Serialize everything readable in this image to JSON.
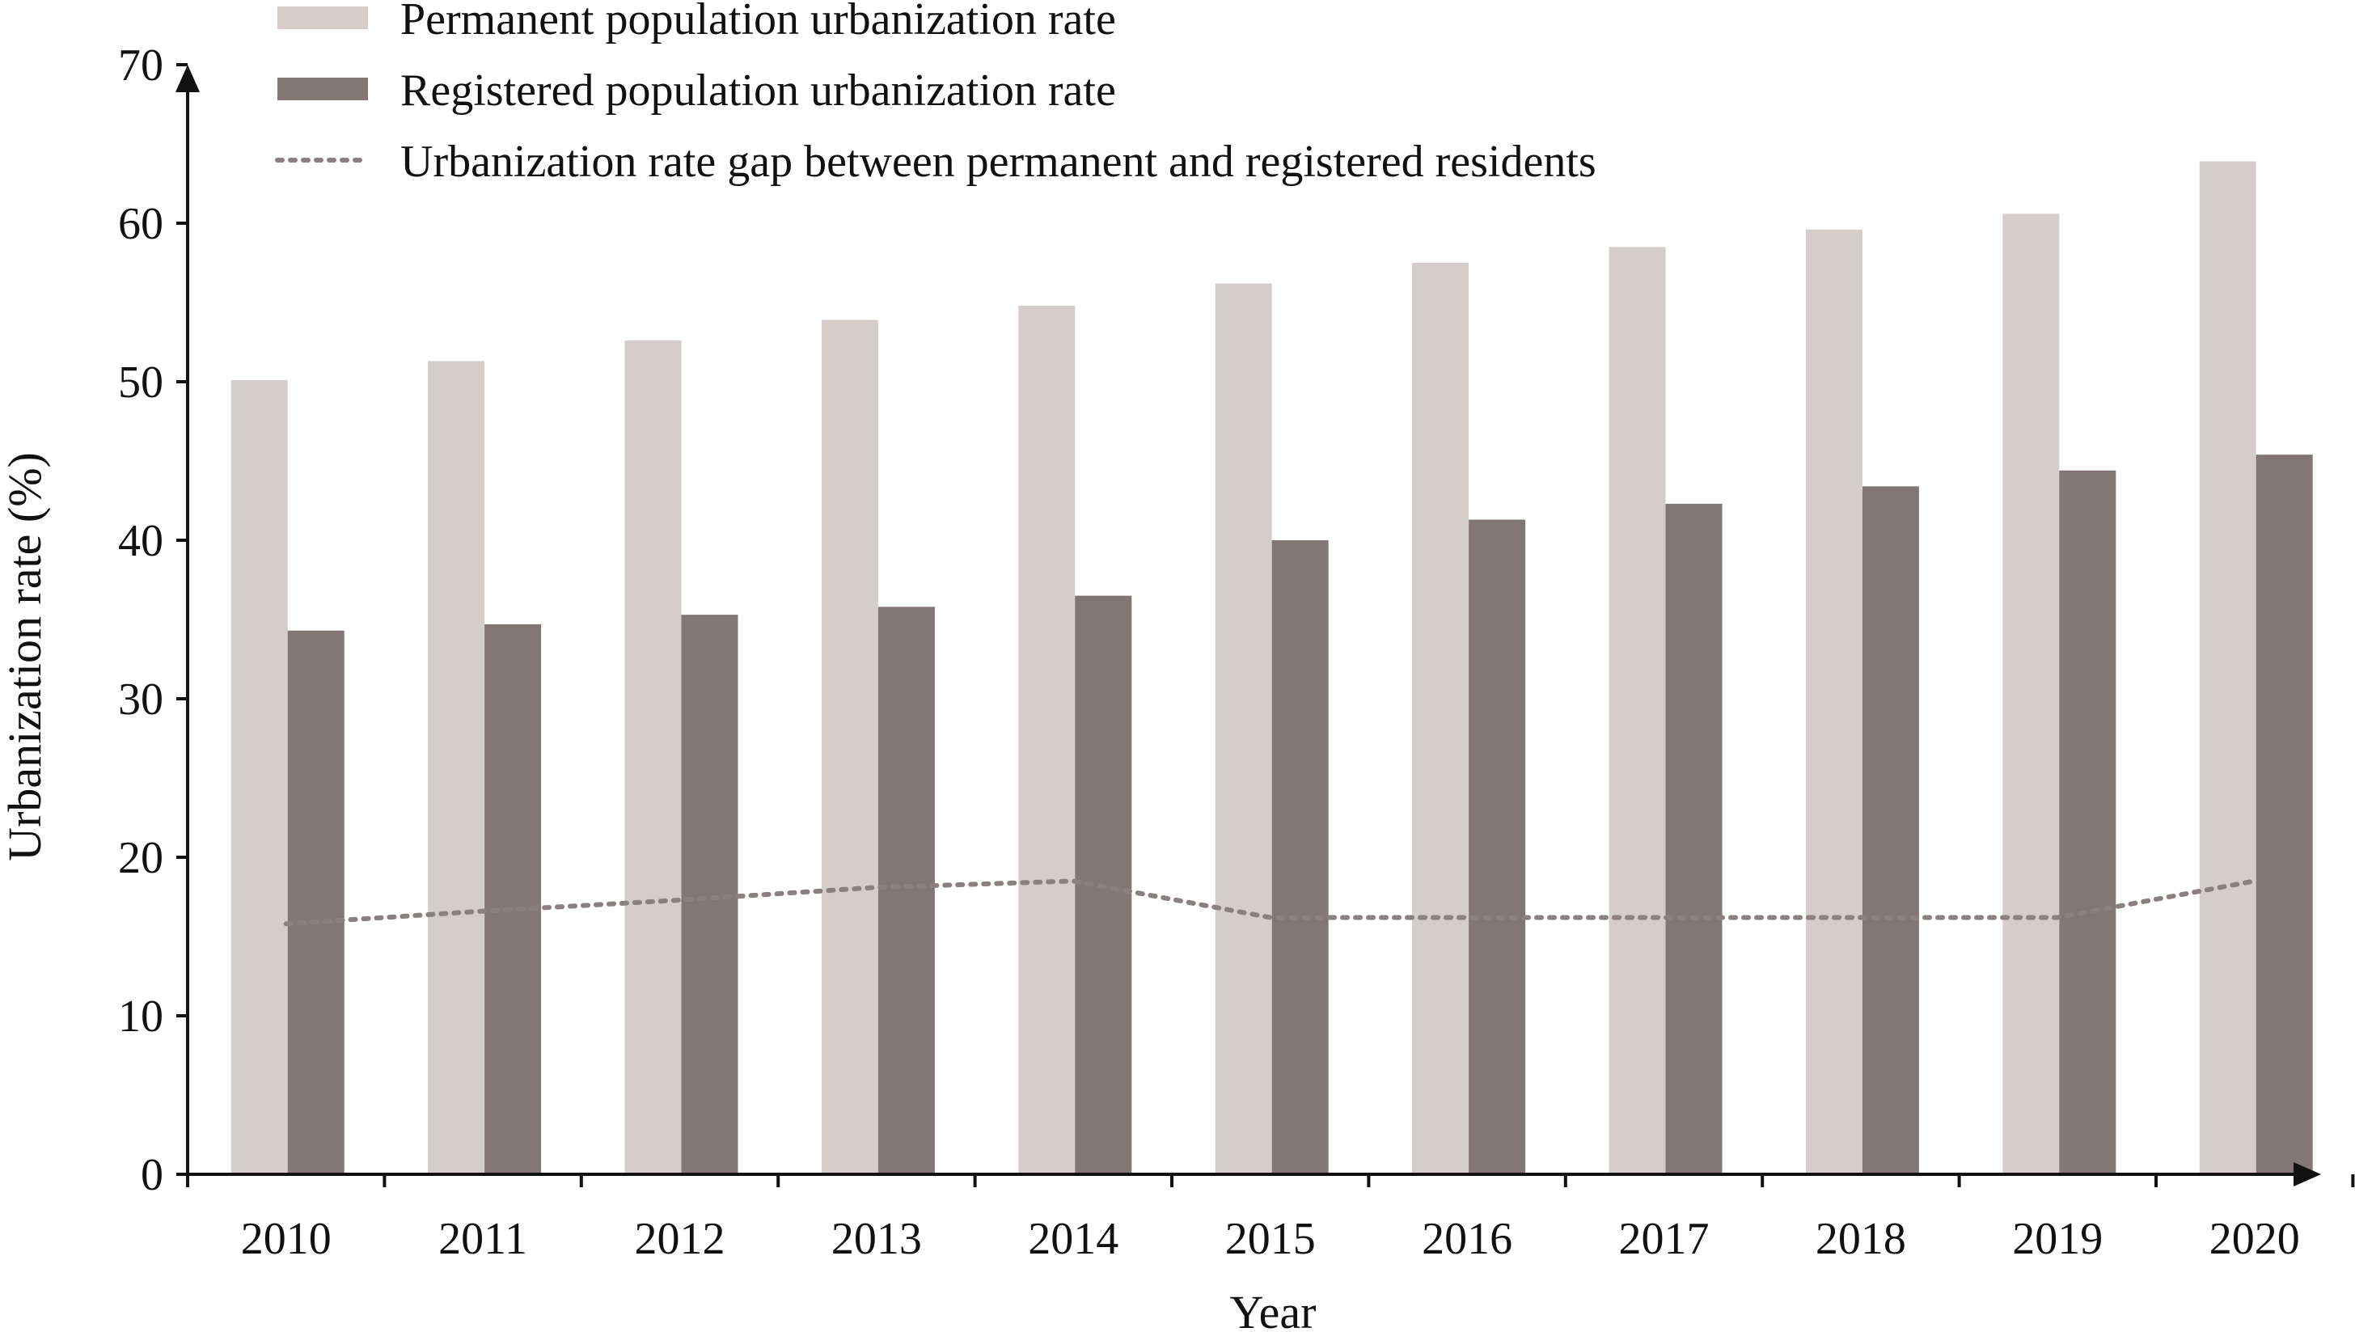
{
  "chart_data": {
    "type": "bar",
    "title": "",
    "xlabel": "Year",
    "ylabel": "Urbanization rate (%)",
    "ylim": [
      0,
      70
    ],
    "yticks": [
      0,
      10,
      20,
      30,
      40,
      50,
      60,
      70
    ],
    "categories": [
      "2010",
      "2011",
      "2012",
      "2013",
      "2014",
      "2015",
      "2016",
      "2017",
      "2018",
      "2019",
      "2020"
    ],
    "series": [
      {
        "name": "Permanent population urbanization rate",
        "kind": "bar",
        "color": "#d5cdcc",
        "values": [
          50.1,
          51.3,
          52.6,
          53.9,
          54.8,
          56.2,
          57.5,
          58.5,
          59.6,
          60.6,
          63.9
        ]
      },
      {
        "name": "Registered population urbanization rate",
        "kind": "bar",
        "color": "#827776",
        "values": [
          34.3,
          34.7,
          35.3,
          35.8,
          36.5,
          40.0,
          41.3,
          42.3,
          43.4,
          44.4,
          45.4
        ]
      },
      {
        "name": "Urbanization rate gap between permanent and registered residents",
        "kind": "line",
        "style": "dotted",
        "color": "#8a8080",
        "values": [
          15.8,
          16.6,
          17.3,
          18.1,
          18.5,
          16.2,
          16.2,
          16.2,
          16.2,
          16.2,
          18.5
        ]
      }
    ],
    "legend": "top",
    "grid": false
  }
}
